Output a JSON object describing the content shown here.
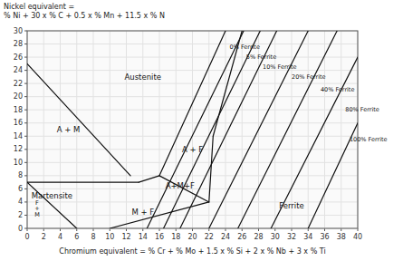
{
  "chart_data": {
    "type": "line",
    "title": "Nickel equivalent =\n% Ni + 30 x % C + 0.5 x % Mn + 11.5 x % N",
    "x_label": "Chromium equivalent = % Cr + % Mo + 1.5 x % Si + 2 x % Nb + 3 x % Ti",
    "xlim": [
      0,
      40
    ],
    "ylim": [
      0,
      30
    ],
    "xticks": [
      0,
      2,
      4,
      6,
      8,
      10,
      12,
      14,
      16,
      18,
      20,
      22,
      24,
      26,
      28,
      30,
      32,
      34,
      36,
      38,
      40
    ],
    "yticks": [
      0,
      2,
      4,
      6,
      8,
      10,
      12,
      14,
      16,
      18,
      20,
      22,
      24,
      26,
      28,
      30
    ],
    "grid": true,
    "color": "#111111",
    "series": [
      {
        "x": [
          14.5,
          26.2
        ],
        "values": [
          0,
          30
        ]
      },
      {
        "x": [
          16.5,
          28.2
        ],
        "values": [
          0,
          30
        ]
      },
      {
        "x": [
          18.5,
          30.2
        ],
        "values": [
          0,
          30
        ]
      },
      {
        "x": [
          22.0,
          34.0
        ],
        "values": [
          0,
          30
        ]
      },
      {
        "x": [
          25.5,
          37.5
        ],
        "values": [
          0,
          30
        ]
      },
      {
        "x": [
          29.5,
          40.0
        ],
        "values": [
          0,
          26
        ]
      },
      {
        "x": [
          34.0,
          40.0
        ],
        "values": [
          0,
          16
        ]
      },
      {
        "x": [
          0,
          12.5
        ],
        "values": [
          25,
          8
        ]
      },
      {
        "x": [
          0,
          13.5
        ],
        "values": [
          7,
          7
        ]
      },
      {
        "x": [
          0,
          6
        ],
        "values": [
          7,
          0
        ]
      },
      {
        "x": [
          10,
          22
        ],
        "values": [
          0,
          4
        ]
      },
      {
        "x": [
          13.5,
          16
        ],
        "values": [
          7,
          8
        ]
      },
      {
        "x": [
          16,
          24
        ],
        "values": [
          8,
          30
        ]
      },
      {
        "x": [
          16,
          22
        ],
        "values": [
          8,
          4
        ]
      },
      {
        "x": [
          22,
          22.5
        ],
        "values": [
          4,
          14
        ]
      },
      {
        "x": [
          22.5,
          26
        ],
        "values": [
          14,
          30
        ]
      }
    ],
    "annotations": [
      {
        "text": "0% Ferrite",
        "x": 24.5,
        "y": 27.5
      },
      {
        "text": "5% Ferrite",
        "x": 26.5,
        "y": 26.0
      },
      {
        "text": "10% Ferrite",
        "x": 28.5,
        "y": 24.5
      },
      {
        "text": "20% Ferrite",
        "x": 32.0,
        "y": 23.0
      },
      {
        "text": "40% Ferrite",
        "x": 35.5,
        "y": 21.0
      },
      {
        "text": "80% Ferrite",
        "x": 38.5,
        "y": 18.0
      },
      {
        "text": "100% Ferrite",
        "x": 39.0,
        "y": 13.5
      },
      {
        "text": "Austenite",
        "x": 14,
        "y": 23
      },
      {
        "text": "A + M",
        "x": 5,
        "y": 15
      },
      {
        "text": "Martensite",
        "x": 3,
        "y": 5
      },
      {
        "text": "A + F",
        "x": 20,
        "y": 12
      },
      {
        "text": "A+M+F",
        "x": 18.5,
        "y": 6.5
      },
      {
        "text": "M + F",
        "x": 14,
        "y": 2.5
      },
      {
        "text": "Ferrite",
        "x": 32,
        "y": 3.5
      },
      {
        "text": "F\n+\nM",
        "x": 1.2,
        "y": 3.0
      }
    ]
  }
}
